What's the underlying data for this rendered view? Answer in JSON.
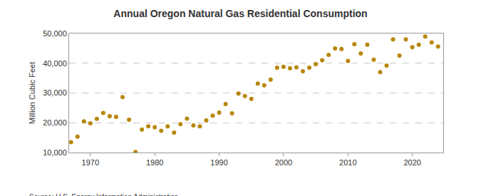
{
  "chart_data": {
    "type": "scatter",
    "title": "Annual Oregon Natural Gas Residential Consumption",
    "y_label": "Million Cubic Feet",
    "annotations": [
      "Source: U.S. Energy Information Administration"
    ],
    "x": [
      1967,
      1968,
      1969,
      1970,
      1971,
      1972,
      1973,
      1974,
      1975,
      1976,
      1977,
      1978,
      1979,
      1980,
      1981,
      1982,
      1983,
      1984,
      1985,
      1986,
      1987,
      1988,
      1989,
      1990,
      1991,
      1992,
      1993,
      1994,
      1995,
      1996,
      1997,
      1998,
      1999,
      2000,
      2001,
      2002,
      2003,
      2004,
      2005,
      2006,
      2007,
      2008,
      2009,
      2010,
      2011,
      2012,
      2013,
      2014,
      2015,
      2016,
      2017,
      2018,
      2019,
      2020,
      2021,
      2022,
      2023,
      2024
    ],
    "values": [
      13500,
      15300,
      20500,
      19800,
      21300,
      23300,
      22200,
      22000,
      28600,
      21000,
      10200,
      17700,
      18800,
      18500,
      17300,
      18800,
      16700,
      19500,
      21400,
      19100,
      18800,
      20800,
      22400,
      23400,
      26300,
      23200,
      29800,
      29000,
      28000,
      33200,
      32600,
      34500,
      38500,
      38800,
      38300,
      38600,
      37300,
      38500,
      39700,
      41000,
      42800,
      45000,
      44800,
      40800,
      46400,
      43300,
      46200,
      41200,
      37000,
      39200,
      48000,
      42600,
      48000,
      45400,
      46200,
      49000,
      47000,
      45600
    ],
    "color": "#b8860b",
    "marker": "circle",
    "xlim": [
      1966.7,
      2024.8
    ],
    "xticks": [
      1970,
      1980,
      1990,
      2000,
      2010,
      2020
    ],
    "ylim": [
      10000,
      50000
    ],
    "yticks": [
      {
        "value": 10000,
        "label": "10,000"
      },
      {
        "value": 20000,
        "label": "20,000"
      },
      {
        "value": 30000,
        "label": "30,000"
      },
      {
        "value": 40000,
        "label": "40,000"
      },
      {
        "value": 50000,
        "label": "50,000"
      }
    ],
    "grid": true
  }
}
